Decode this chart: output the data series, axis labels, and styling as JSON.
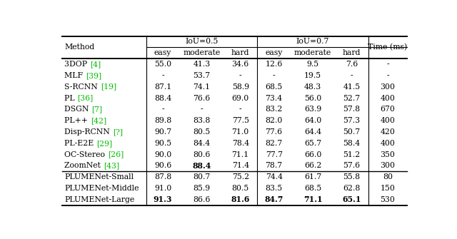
{
  "figsize": [
    6.4,
    3.35
  ],
  "dpi": 100,
  "background": "#ffffff",
  "ref_color": "#00bb00",
  "rows": [
    [
      "3DOP",
      "[4]",
      "55.0",
      "41.3",
      "34.6",
      "12.6",
      "9.5",
      "7.6",
      "-"
    ],
    [
      "MLF",
      "[39]",
      "-",
      "53.7",
      "-",
      "-",
      "19.5",
      "-",
      "-"
    ],
    [
      "S-RCNN",
      "[19]",
      "87.1",
      "74.1",
      "58.9",
      "68.5",
      "48.3",
      "41.5",
      "300"
    ],
    [
      "PL",
      "[36]",
      "88.4",
      "76.6",
      "69.0",
      "73.4",
      "56.0",
      "52.7",
      "400"
    ],
    [
      "DSGN",
      "[7]",
      "-",
      "-",
      "-",
      "83.2",
      "63.9",
      "57.8",
      "670"
    ],
    [
      "PL++",
      "[42]",
      "89.8",
      "83.8",
      "77.5",
      "82.0",
      "64.0",
      "57.3",
      "400"
    ],
    [
      "Disp-RCNN",
      "[?]",
      "90.7",
      "80.5",
      "71.0",
      "77.6",
      "64.4",
      "50.7",
      "420"
    ],
    [
      "PL-E2E",
      "[29]",
      "90.5",
      "84.4",
      "78.4",
      "82.7",
      "65.7",
      "58.4",
      "400"
    ],
    [
      "OC-Stereo",
      "[26]",
      "90.0",
      "80.6",
      "71.1",
      "77.7",
      "66.0",
      "51.2",
      "350"
    ],
    [
      "ZoomNet",
      "[43]",
      "90.6",
      "88.4",
      "71.4",
      "78.7",
      "66.2",
      "57.6",
      "300"
    ]
  ],
  "plume_rows": [
    [
      "PLUMENet-Small",
      "",
      "87.8",
      "80.7",
      "75.2",
      "74.4",
      "61.7",
      "55.8",
      "80"
    ],
    [
      "PLUMENet-Middle",
      "",
      "91.0",
      "85.9",
      "80.5",
      "83.5",
      "68.5",
      "62.8",
      "150"
    ],
    [
      "PLUMENet-Large",
      "",
      "91.3",
      "86.6",
      "81.6",
      "84.7",
      "71.1",
      "65.1",
      "530"
    ]
  ],
  "bold_data": {
    "ZoomNet_[43]": [
      1
    ],
    "PLUMENet-Large_": [
      0,
      2,
      3,
      4,
      5
    ]
  }
}
